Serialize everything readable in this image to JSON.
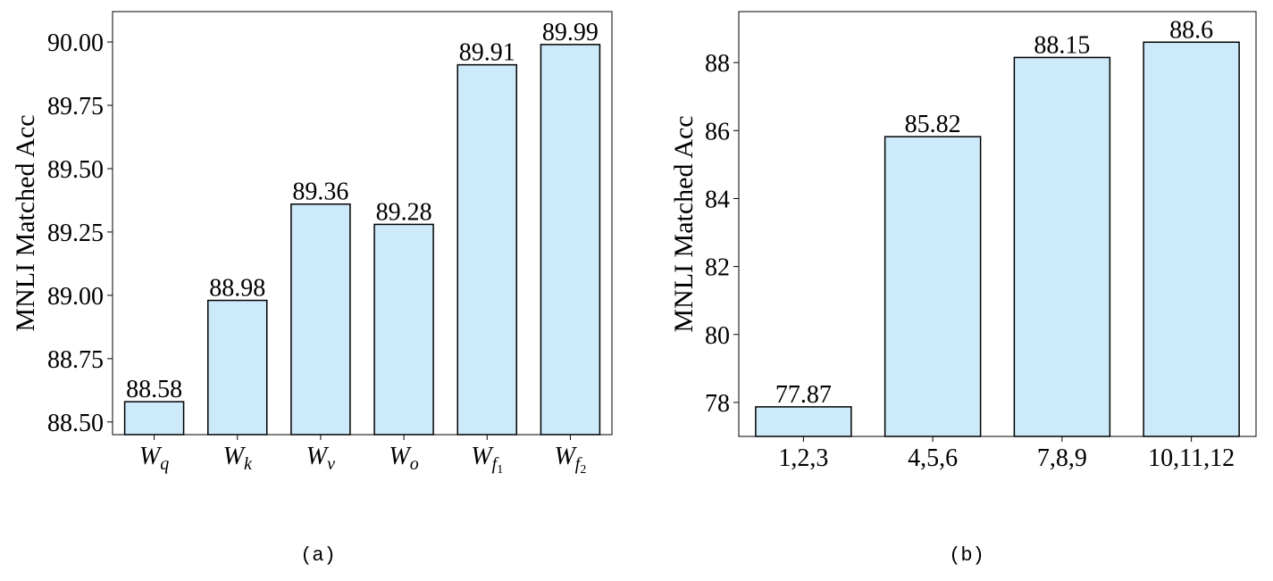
{
  "colors": {
    "bar_fill": "#cdeafa",
    "bar_stroke": "#000000",
    "axis": "#000000"
  },
  "chart_data": [
    {
      "type": "bar",
      "caption": "(a)",
      "categories": [
        "W_q",
        "W_k",
        "W_v",
        "W_o",
        "W_f1",
        "W_f2"
      ],
      "category_display": [
        {
          "base": "W",
          "sub": "q"
        },
        {
          "base": "W",
          "sub": "k"
        },
        {
          "base": "W",
          "sub": "v"
        },
        {
          "base": "W",
          "sub": "o"
        },
        {
          "base": "W",
          "sub": "f",
          "subsub": "1"
        },
        {
          "base": "W",
          "sub": "f",
          "subsub": "2"
        }
      ],
      "values": [
        88.58,
        88.98,
        89.36,
        89.28,
        89.91,
        89.99
      ],
      "data_labels": [
        "88.58",
        "88.98",
        "89.36",
        "89.28",
        "89.91",
        "89.99"
      ],
      "ylabel": "MNLI Matched Acc",
      "xlabel": "",
      "ylim": [
        88.45,
        90.12
      ],
      "yticks": [
        88.5,
        88.75,
        89.0,
        89.25,
        89.5,
        89.75,
        90.0
      ],
      "ytick_labels": [
        "88.50",
        "88.75",
        "89.00",
        "89.25",
        "89.50",
        "89.75",
        "90.00"
      ],
      "grid": false,
      "legend": "none"
    },
    {
      "type": "bar",
      "caption": "(b)",
      "categories": [
        "1,2,3",
        "4,5,6",
        "7,8,9",
        "10,11,12"
      ],
      "values": [
        77.87,
        85.82,
        88.15,
        88.6
      ],
      "data_labels": [
        "77.87",
        "85.82",
        "88.15",
        "88.6"
      ],
      "ylabel": "MNLI Matched Acc",
      "xlabel": "",
      "ylim": [
        77.0,
        89.5
      ],
      "yticks": [
        78,
        80,
        82,
        84,
        86,
        88
      ],
      "ytick_labels": [
        "78",
        "80",
        "82",
        "84",
        "86",
        "88"
      ],
      "grid": false,
      "legend": "none"
    }
  ]
}
